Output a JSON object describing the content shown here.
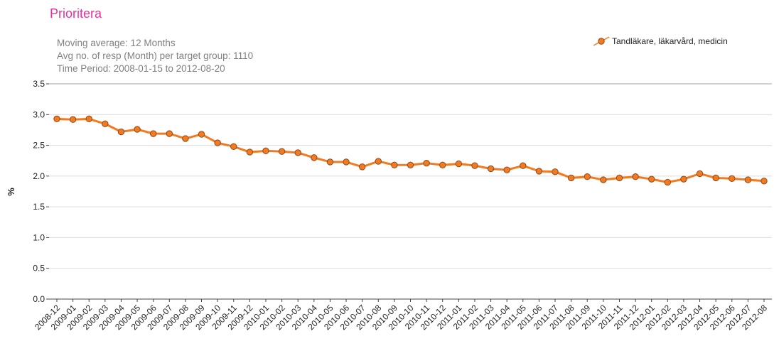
{
  "chart_data": {
    "type": "line",
    "title": "Prioritera",
    "subtitle": [
      "Moving average: 12 Months",
      "Avg no. of resp (Month) per target group: 1110",
      "Time Period: 2008-01-15 to 2012-08-20"
    ],
    "ylabel": "%",
    "categories": [
      "2008-12",
      "2009-01",
      "2009-02",
      "2009-03",
      "2009-04",
      "2009-05",
      "2009-06",
      "2009-07",
      "2009-08",
      "2009-09",
      "2009-10",
      "2009-11",
      "2009-12",
      "2010-01",
      "2010-02",
      "2010-03",
      "2010-04",
      "2010-05",
      "2010-06",
      "2010-07",
      "2010-08",
      "2010-09",
      "2010-10",
      "2010-11",
      "2010-12",
      "2011-01",
      "2011-02",
      "2011-03",
      "2011-04",
      "2011-05",
      "2011-06",
      "2011-07",
      "2011-08",
      "2011-09",
      "2011-10",
      "2011-11",
      "2011-12",
      "2012-01",
      "2012-02",
      "2012-03",
      "2012-04",
      "2012-05",
      "2012-06",
      "2012-07",
      "2012-08"
    ],
    "series": [
      {
        "name": "Tandläkare, läkarvård, medicin",
        "color": "#f47a20",
        "values": [
          2.93,
          2.92,
          2.93,
          2.85,
          2.72,
          2.76,
          2.69,
          2.69,
          2.61,
          2.68,
          2.54,
          2.48,
          2.39,
          2.41,
          2.4,
          2.38,
          2.3,
          2.23,
          2.23,
          2.15,
          2.24,
          2.18,
          2.18,
          2.21,
          2.18,
          2.2,
          2.17,
          2.12,
          2.1,
          2.17,
          2.08,
          2.07,
          1.97,
          1.99,
          1.94,
          1.97,
          1.99,
          1.95,
          1.9,
          1.95,
          2.04,
          1.97,
          1.96,
          1.94,
          1.92
        ]
      }
    ],
    "ylim": [
      0,
      3.5
    ],
    "yticks": [
      {
        "value": 0,
        "label": "0.0"
      },
      0.5,
      {
        "value": 1,
        "label": "1.0"
      },
      1.5,
      {
        "value": 2,
        "label": "2.0"
      },
      2.5,
      {
        "value": 3,
        "label": "3.0"
      },
      3.5
    ],
    "grid": true,
    "legend": "top-right"
  }
}
